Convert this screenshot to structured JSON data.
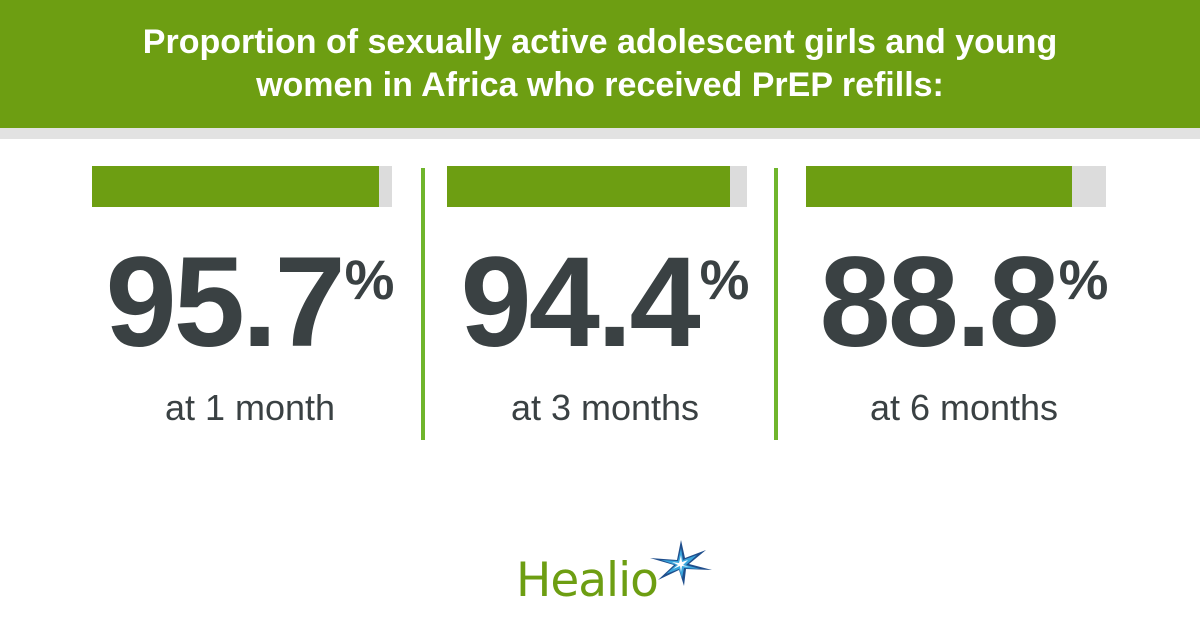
{
  "header": {
    "title": "Proportion of sexually active adolescent girls and young women in Africa who received PrEP refills:"
  },
  "stats": [
    {
      "value": "95.7",
      "unit": "%",
      "label": "at 1 month"
    },
    {
      "value": "94.4",
      "unit": "%",
      "label": "at 3 months"
    },
    {
      "value": "88.8",
      "unit": "%",
      "label": "at 6 months"
    }
  ],
  "chart_data": {
    "type": "bar",
    "title": "Proportion of sexually active adolescent girls and young women in Africa who received PrEP refills:",
    "categories": [
      "at 1 month",
      "at 3 months",
      "at 6 months"
    ],
    "values": [
      95.7,
      94.4,
      88.8
    ],
    "ylim": [
      0,
      100
    ],
    "orientation": "horizontal",
    "grid": false,
    "legend": "none"
  },
  "logo": {
    "text": "Healio",
    "icon": "star-burst-icon"
  },
  "colors": {
    "brand_green": "#6d9e12",
    "track_gray": "#dcdcdc",
    "text_dark": "#3a4143",
    "divider_green": "#6fb52c",
    "star_blue": "#1f4e8c",
    "star_light": "#3aa6dd"
  }
}
